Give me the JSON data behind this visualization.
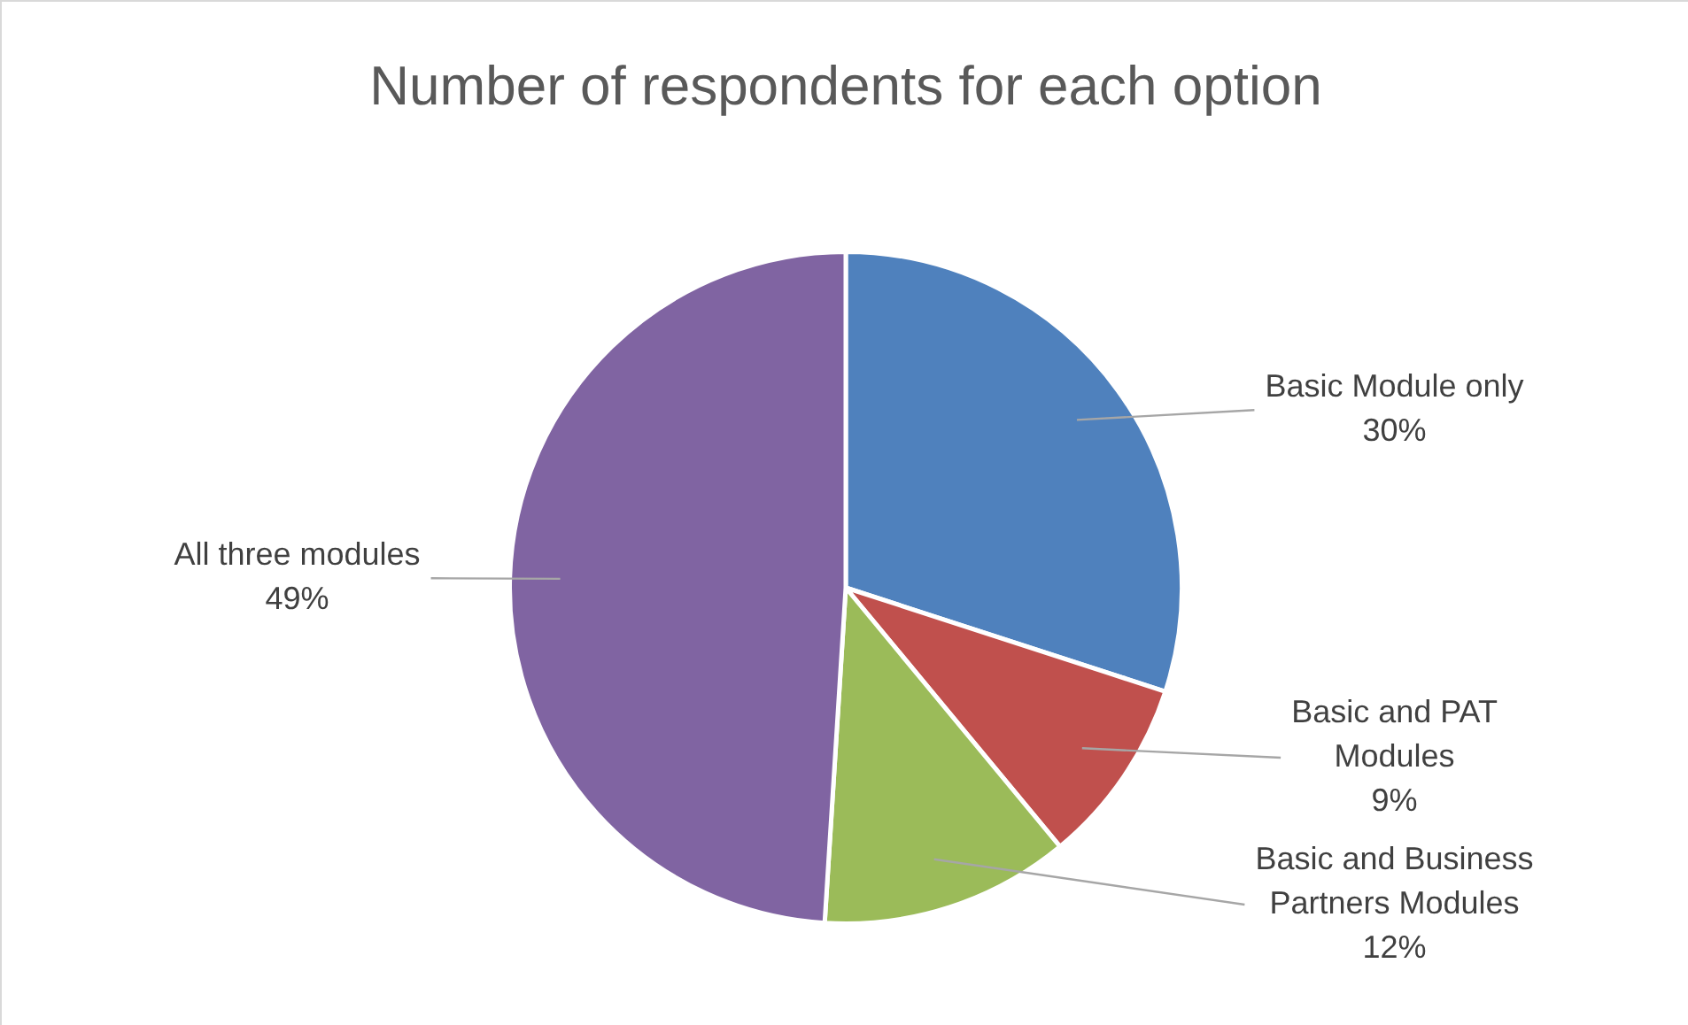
{
  "chart_data": {
    "type": "pie",
    "title": "Number of respondents for each option",
    "categories": [
      "Basic Module only",
      "Basic and PAT Modules",
      "Basic and Business Partners Modules",
      "All three modules"
    ],
    "values": [
      30,
      9,
      12,
      49
    ],
    "colors": [
      "#4f81bd",
      "#c0504d",
      "#9bbb59",
      "#8064a2"
    ],
    "value_labels": [
      "30%",
      "9%",
      "12%",
      "49%"
    ],
    "legend": false
  }
}
